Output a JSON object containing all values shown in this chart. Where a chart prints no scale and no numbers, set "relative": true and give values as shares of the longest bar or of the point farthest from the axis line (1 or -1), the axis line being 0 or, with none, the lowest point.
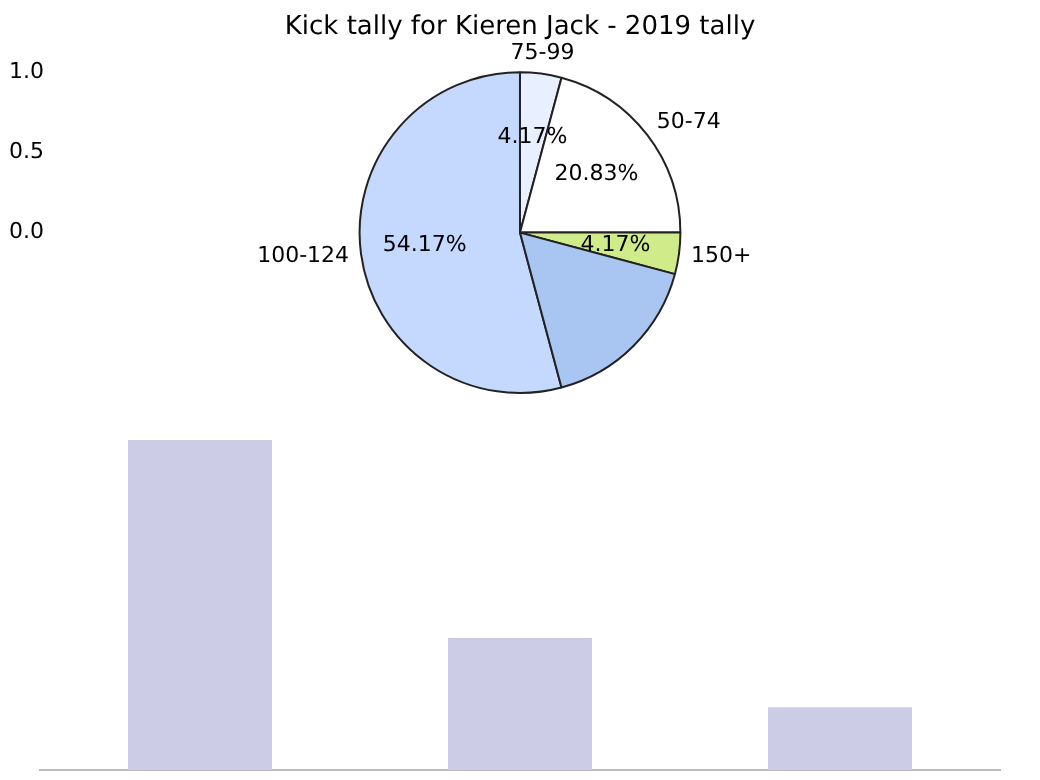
{
  "chart_data": [
    {
      "type": "pie",
      "title": "Kick tally for Kieren Jack - 2019 tally",
      "categories": [
        "100-124",
        "75-99",
        "50-74",
        "150+",
        null
      ],
      "values": [
        54.17,
        4.17,
        20.83,
        4.17,
        16.67
      ],
      "colors": [
        "#c5d9ff",
        "#e8f0ff",
        "#ffffff",
        "#d0ec8a",
        "#a9c6f2"
      ],
      "value_labels": [
        "54.17%",
        "4.17%",
        "20.83%",
        "4.17%",
        null
      ],
      "annotations": [
        "1.0",
        "0.5",
        "0.0"
      ],
      "legend": false
    },
    {
      "type": "bar",
      "relative": true,
      "categories": [
        null,
        null,
        null
      ],
      "values": [
        1,
        0.4,
        0.19
      ],
      "color": "#ccccE6",
      "legend": false
    }
  ]
}
